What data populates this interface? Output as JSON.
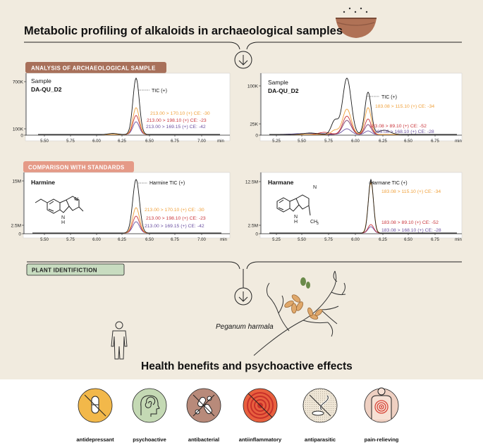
{
  "main_title": "Metabolic profiling of alkaloids in archaeological samples",
  "section_sample": "ANALYSIS OF ARCHAEOLOGICAL SAMPLE",
  "section_standards": "COMPARISON WITH STANDARDS",
  "section_plant": "PLANT IDENTIFICTION",
  "health_title": "Health benefits and psychoactive effects",
  "plant_name": "Peganum harmala",
  "colors": {
    "accent_brown": "#a8705a",
    "accent_salmon": "#e59a87",
    "tic": "#1a1a1a",
    "orange": "#f0a03a",
    "red": "#c9343a",
    "purple": "#6a4fa0",
    "plum": "#7a3a6a",
    "panel_bg": "#ffffff",
    "page_bg": "#f1ebdf"
  },
  "charts": [
    {
      "id": "sample-harmine",
      "label_line1": "Sample",
      "label_line2": "DA-QU_D2",
      "y_ticks": [
        "700K",
        "100K",
        "0"
      ],
      "x_ticks": [
        "5.50",
        "5.75",
        "6.00",
        "6.25",
        "6.50",
        "6.75",
        "7.00",
        "min"
      ],
      "tic_label": "TIC (+)",
      "transitions": [
        "213.00 > 170.10 (+) CE: -30",
        "213.00 > 198.10 (+) CE: -23",
        "213.00 > 169.15 (+) CE: -42"
      ]
    },
    {
      "id": "sample-harmane",
      "label_line1": "Sample",
      "label_line2": "DA-QU_D2",
      "y_ticks": [
        "100K",
        "25K",
        "0"
      ],
      "x_ticks": [
        "5.25",
        "5.50",
        "5.75",
        "6.00",
        "6.25",
        "6.50",
        "6.75",
        "min"
      ],
      "tic_label": "TIC (+)",
      "transitions": [
        "183.08 > 115.10 (+) CE: -34",
        "183.08 > 89.10 (+) CE: -52",
        "183.08 > 168.10 (+) CE: -28"
      ]
    },
    {
      "id": "standard-harmine",
      "label_line1": "Harmine",
      "y_ticks": [
        "15M",
        "2.5M",
        "0"
      ],
      "x_ticks": [
        "5.50",
        "5.75",
        "6.00",
        "6.25",
        "6.50",
        "6.75",
        "7.00",
        "min"
      ],
      "tic_label": "Harmine TIC (+)",
      "transitions": [
        "213.00 > 170.10 (+) CE: -30",
        "213.00 > 198.10 (+) CE: -23",
        "213.00 > 169.15 (+) CE: -42"
      ],
      "structure_atom": "N",
      "structure_atom2": "H"
    },
    {
      "id": "standard-harmane",
      "label_line1": "Harmane",
      "y_ticks": [
        "12.5M",
        "2.5M",
        "0"
      ],
      "x_ticks": [
        "5.25",
        "5.50",
        "5.75",
        "6.00",
        "6.25",
        "6.50",
        "6.75",
        "min"
      ],
      "tic_label": "Harmane TIC (+)",
      "transitions": [
        "183.08 > 115.10 (+) CE: -34",
        "183.08 > 89.10 (+) CE: -52",
        "183.08 > 168.10 (+) CE: -28"
      ],
      "structure_atom": "N",
      "structure_atom2": "H",
      "structure_methyl": "CH",
      "structure_methyl_sub": "3"
    }
  ],
  "effects": [
    {
      "label": "antidepressant",
      "icon": "pill-crossed-icon",
      "color": "#f2b84a"
    },
    {
      "label": "psychoactive",
      "icon": "brain-spiral-icon",
      "color": "#c4d9b4"
    },
    {
      "label": "antibacterial",
      "icon": "bacteria-crossed-icon",
      "color": "#b88a7a"
    },
    {
      "label": "antiinflammatory",
      "icon": "inflammation-crossed-icon",
      "color": "#e8603e"
    },
    {
      "label": "antiparasitic",
      "icon": "parasite-crossed-icon",
      "color": "#efe6d6"
    },
    {
      "label": "pain-relieving",
      "icon": "pain-back-icon",
      "color": "#efd0c2"
    }
  ]
}
